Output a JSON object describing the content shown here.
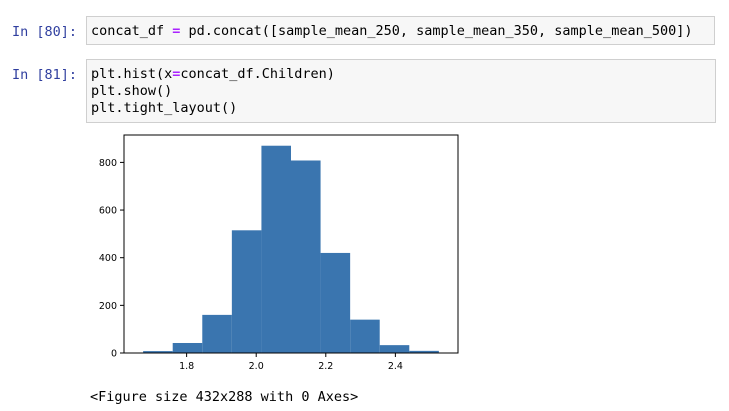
{
  "cells": [
    {
      "prompt": "In [80]:",
      "lines": [
        [
          "concat_df ",
          "=",
          " pd.concat([sample_mean_250, sample_mean_350, sample_mean_500])"
        ]
      ]
    },
    {
      "prompt": "In [81]:",
      "lines": [
        [
          "plt.hist(x",
          "=",
          "concat_df.Children)"
        ],
        [
          "plt.show()"
        ],
        [
          "plt.tight_layout()"
        ]
      ]
    }
  ],
  "output": {
    "text": "<Figure size 432x288 with 0 Axes>"
  },
  "chart_data": {
    "type": "bar",
    "histogram": true,
    "bin_edges": [
      1.675,
      1.76,
      1.845,
      1.93,
      2.015,
      2.1,
      2.185,
      2.27,
      2.355,
      2.44,
      2.525
    ],
    "values": [
      8,
      42,
      160,
      515,
      870,
      808,
      420,
      140,
      33,
      9
    ],
    "xlim": [
      1.62,
      2.58
    ],
    "ylim": [
      0,
      915
    ],
    "xticks": [
      1.8,
      2.0,
      2.2,
      2.4
    ],
    "xtick_labels": [
      "1.8",
      "2.0",
      "2.2",
      "2.4"
    ],
    "yticks": [
      0,
      200,
      400,
      600,
      800
    ],
    "ytick_labels": [
      "0",
      "200",
      "400",
      "600",
      "800"
    ],
    "bar_color": "#3a75af",
    "grid": false
  }
}
